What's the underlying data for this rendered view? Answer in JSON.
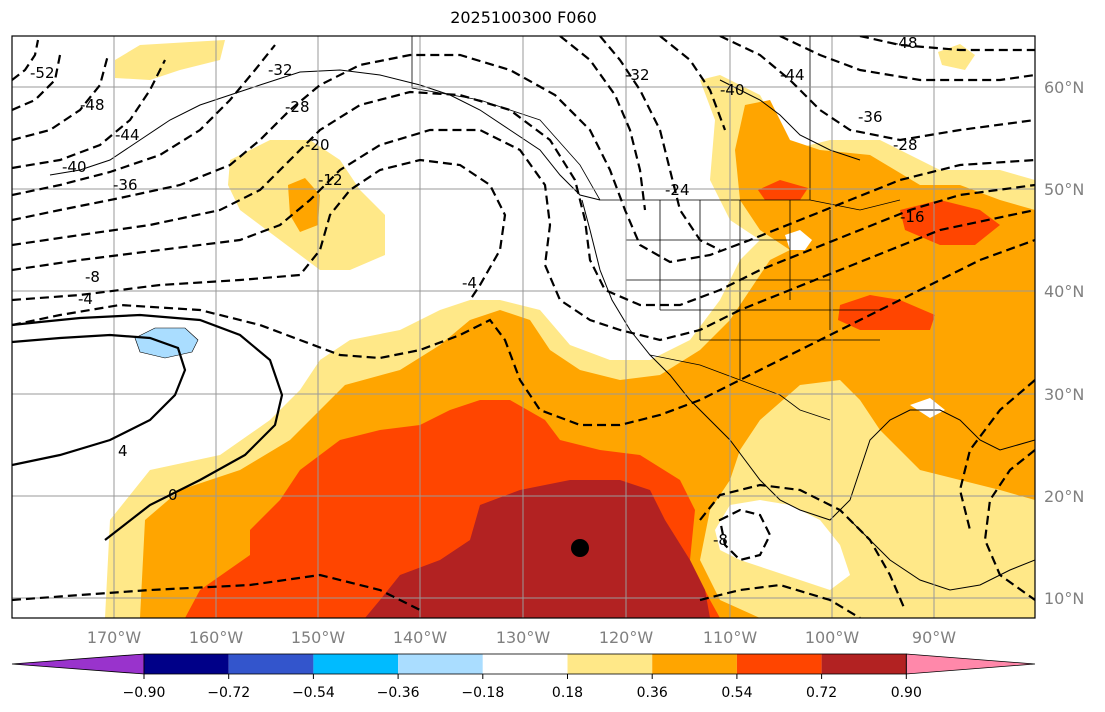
{
  "title": "2025100300 F060",
  "map": {
    "lat_labels": [
      "60°N",
      "50°N",
      "40°N",
      "30°N",
      "20°N",
      "10°N"
    ],
    "lon_labels": [
      "170°W",
      "160°W",
      "150°W",
      "140°W",
      "130°W",
      "120°W",
      "110°W",
      "100°W",
      "90°W"
    ],
    "lat_values": [
      60,
      50,
      40,
      30,
      20,
      10
    ],
    "lon_values": [
      -170,
      -160,
      -150,
      -140,
      -130,
      -120,
      -110,
      -100,
      -90
    ],
    "extent": {
      "lon_min": -180,
      "lon_max": -80,
      "lat_min": 8,
      "lat_max": 65
    },
    "marker": {
      "lon": -125,
      "lat": 15,
      "color": "#000000"
    },
    "contour_labels": [
      "-52",
      "-48",
      "-44",
      "-40",
      "-36",
      "-32",
      "-28",
      "-20",
      "-12",
      "-8",
      "-4",
      "0",
      "4",
      "-4",
      "-8",
      "-28",
      "-36",
      "-44",
      "-48",
      "-16",
      "-24",
      "-32",
      "-40"
    ]
  },
  "colorbar": {
    "ticks": [
      "−0.90",
      "−0.72",
      "−0.54",
      "−0.36",
      "−0.18",
      "0.18",
      "0.36",
      "0.54",
      "0.72",
      "0.90"
    ],
    "colors": [
      "#9933cc",
      "#000088",
      "#3355cc",
      "#00bbff",
      "#aaddff",
      "#ffffff",
      "#ffe888",
      "#ffa500",
      "#ff4500",
      "#b22222",
      "#ff88aa"
    ]
  },
  "fill_colors": {
    "yellow": "#ffe888",
    "orange": "#ffa500",
    "red_orange": "#ff4500",
    "dark_red": "#b22222",
    "light_blue": "#aaddff"
  }
}
